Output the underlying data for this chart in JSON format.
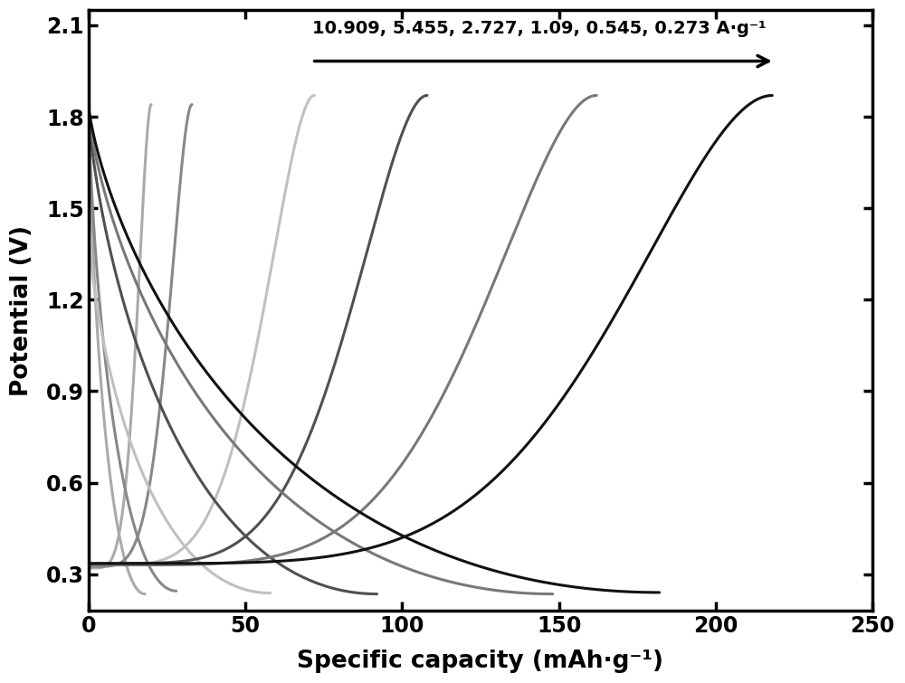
{
  "xlabel": "Specific capacity (mAh·g⁻¹)",
  "ylabel": "Potential (V)",
  "xlim": [
    0,
    250
  ],
  "ylim": [
    0.18,
    2.15
  ],
  "xticks": [
    0,
    50,
    100,
    150,
    200,
    250
  ],
  "yticks": [
    0.3,
    0.6,
    0.9,
    1.2,
    1.5,
    1.8,
    2.1
  ],
  "annotation_text": "10.909, 5.455, 2.727, 1.09, 0.545, 0.273 A·g⁻¹",
  "curves": [
    {
      "label": "10.909 A/g",
      "color": "#aaaaaa",
      "cap_d": 18,
      "cap_c": 20,
      "vstart_d": 1.85,
      "vend_d": 0.235,
      "vstart_c": 0.32,
      "vend_c": 1.84
    },
    {
      "label": "5.455 A/g",
      "color": "#888888",
      "cap_d": 28,
      "cap_c": 33,
      "vstart_d": 1.84,
      "vend_d": 0.245,
      "vstart_c": 0.325,
      "vend_c": 1.84
    },
    {
      "label": "2.727 A/g",
      "color": "#c0c0c0",
      "cap_d": 58,
      "cap_c": 72,
      "vstart_d": 1.43,
      "vend_d": 0.238,
      "vstart_c": 0.33,
      "vend_c": 1.87
    },
    {
      "label": "1.09 A/g",
      "color": "#505050",
      "cap_d": 92,
      "cap_c": 108,
      "vstart_d": 1.82,
      "vend_d": 0.235,
      "vstart_c": 0.335,
      "vend_c": 1.87
    },
    {
      "label": "0.545 A/g",
      "color": "#787878",
      "cap_d": 148,
      "cap_c": 162,
      "vstart_d": 1.82,
      "vend_d": 0.235,
      "vstart_c": 0.33,
      "vend_c": 1.87
    },
    {
      "label": "0.273 A/g",
      "color": "#111111",
      "cap_d": 182,
      "cap_c": 218,
      "vstart_d": 1.84,
      "vend_d": 0.24,
      "vstart_c": 0.335,
      "vend_c": 1.87
    }
  ],
  "linewidth": 2.2,
  "background_color": "#ffffff"
}
